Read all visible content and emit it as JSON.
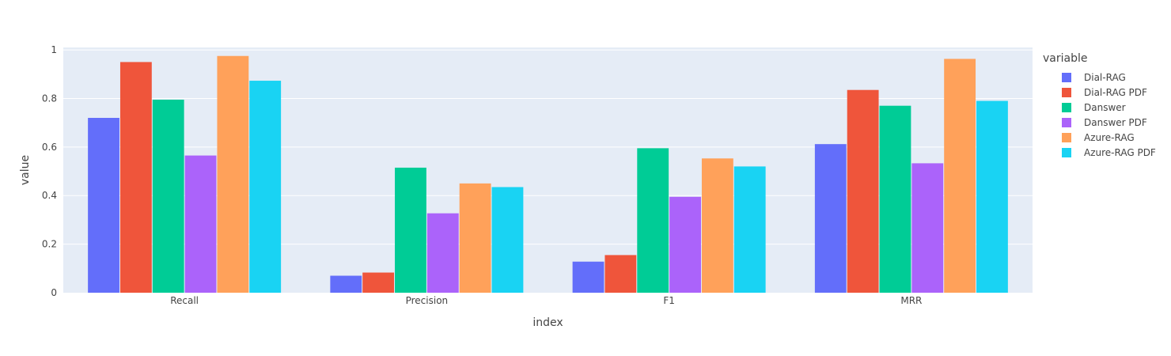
{
  "chart_data": {
    "type": "bar",
    "categories": [
      "Recall",
      "Precision",
      "F1",
      "MRR"
    ],
    "series": [
      {
        "name": "Dial-RAG",
        "color": "#636efa",
        "values": [
          0.72,
          0.07,
          0.128,
          0.612
        ]
      },
      {
        "name": "Dial-RAG PDF",
        "color": "#ef553b",
        "values": [
          0.95,
          0.083,
          0.155,
          0.835
        ]
      },
      {
        "name": "Danswer",
        "color": "#00cc96",
        "values": [
          0.795,
          0.515,
          0.595,
          0.77
        ]
      },
      {
        "name": "Danswer PDF",
        "color": "#ab63fa",
        "values": [
          0.565,
          0.327,
          0.395,
          0.533
        ]
      },
      {
        "name": "Azure-RAG",
        "color": "#ffa15a",
        "values": [
          0.975,
          0.45,
          0.553,
          0.963
        ]
      },
      {
        "name": "Azure-RAG PDF",
        "color": "#19d3f3",
        "values": [
          0.873,
          0.435,
          0.52,
          0.79
        ]
      }
    ],
    "xlabel": "index",
    "ylabel": "value",
    "ylim": [
      0,
      1.01
    ],
    "yticks": [
      0,
      0.2,
      0.4,
      0.6,
      0.8,
      1
    ],
    "ytick_labels": [
      "0",
      "0.2",
      "0.4",
      "0.6",
      "0.8",
      "1"
    ],
    "legend_title": "variable",
    "legend_position": "right",
    "grid": true,
    "plot_background": "#e5ecf6",
    "grid_color": "#ffffff"
  }
}
